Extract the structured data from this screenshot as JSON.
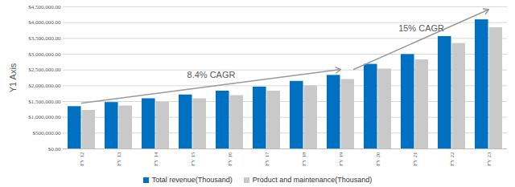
{
  "chart_data": {
    "type": "bar",
    "y_label": "Y1 Axis",
    "categories": [
      "FY 12",
      "FY 13",
      "FY 14",
      "FY 15",
      "FY 16",
      "FY 17",
      "FY 18",
      "FY 19",
      "FY 20",
      "FY 21",
      "FY 22",
      "FY 23"
    ],
    "series": [
      {
        "name": "Total revenue(Thousand)",
        "color": "#0070c0",
        "values": [
          1340000,
          1470000,
          1590000,
          1710000,
          1830000,
          1960000,
          2140000,
          2330000,
          2680000,
          2990000,
          3560000,
          4090000
        ]
      },
      {
        "name": "Product and maintenance(Thousand)",
        "color": "#c9c9c9",
        "values": [
          1220000,
          1360000,
          1480000,
          1590000,
          1690000,
          1830000,
          2000000,
          2200000,
          2530000,
          2820000,
          3340000,
          3840000
        ]
      }
    ],
    "ylim": [
      0,
      4500000
    ],
    "yticks": [
      {
        "value": 0,
        "label": "$0.00"
      },
      {
        "value": 500000,
        "label": "$500,000.00"
      },
      {
        "value": 1000000,
        "label": "$1,000,000.00"
      },
      {
        "value": 1500000,
        "label": "$1,500,000.00"
      },
      {
        "value": 2000000,
        "label": "$2,000,000.00"
      },
      {
        "value": 2500000,
        "label": "$2,500,000.00"
      },
      {
        "value": 3000000,
        "label": "$3,000,000.00"
      },
      {
        "value": 3500000,
        "label": "$3,500,000.00"
      },
      {
        "value": 4000000,
        "label": "$4,000,000.00"
      },
      {
        "value": 4500000,
        "label": "$4,500,000.00"
      }
    ],
    "grid": true,
    "legend": "bottom",
    "annotations": [
      {
        "text": "8.4% CAGR",
        "from": "FY 12",
        "to": "FY 19"
      },
      {
        "text": "15% CAGR",
        "from": "FY 19",
        "to": "FY 23"
      }
    ]
  }
}
